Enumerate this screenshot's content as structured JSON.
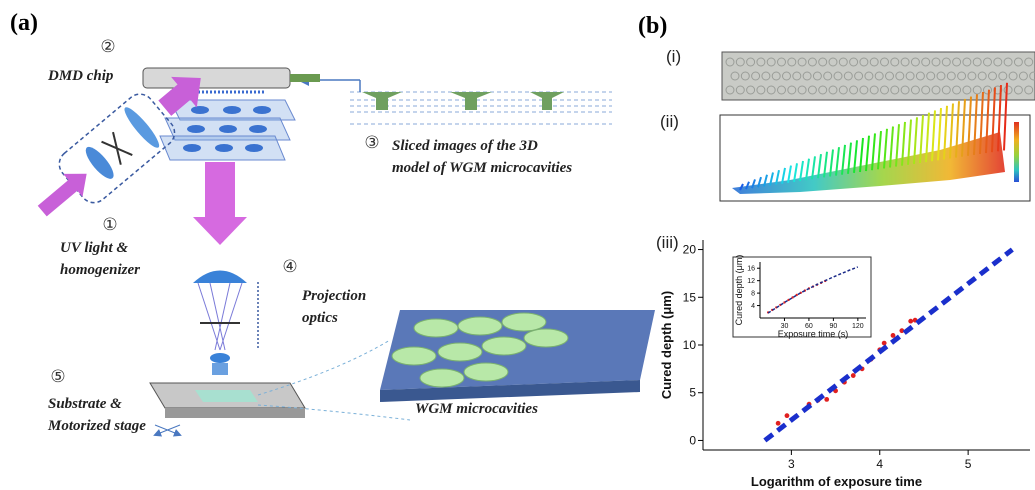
{
  "panel_a": {
    "label": "(a)",
    "steps": [
      {
        "number": "①",
        "lines": [
          "UV light &",
          "homogenizer"
        ]
      },
      {
        "number": "②",
        "lines": [
          "DMD chip"
        ]
      },
      {
        "number": "③",
        "lines": [
          "Sliced images of the 3D",
          "model of WGM microcavities"
        ]
      },
      {
        "number": "④",
        "lines": [
          "Projection",
          "optics"
        ]
      },
      {
        "number": "⑤",
        "lines": [
          "Substrate &",
          "Motorized stage"
        ]
      }
    ],
    "sample_label": "WGM microcavities"
  },
  "panel_b": {
    "label": "(b)",
    "sub_labels": [
      "(i)",
      "(ii)",
      "(iii)"
    ]
  },
  "chart_data": [
    {
      "type": "scatter",
      "xlabel": "Logarithm of exposure time",
      "ylabel": "Cured depth (μm)",
      "xlim": [
        2.0,
        5.7
      ],
      "ylim": [
        -1,
        21
      ],
      "xticks": [
        3,
        4,
        5
      ],
      "yticks": [
        0,
        5,
        10,
        15,
        20
      ],
      "series": [
        {
          "mode": "markers",
          "color": "#e02020",
          "x": [
            2.85,
            2.95,
            3.05,
            3.2,
            3.3,
            3.4,
            3.5,
            3.6,
            3.7,
            3.8,
            3.9,
            4.0,
            4.05,
            4.15,
            4.25,
            4.35,
            4.4
          ],
          "values": [
            1.8,
            2.6,
            2.5,
            3.8,
            4.2,
            4.3,
            5.2,
            6.1,
            6.8,
            7.5,
            8.5,
            9.5,
            10.2,
            11,
            11.5,
            12.5,
            12.6
          ]
        },
        {
          "mode": "dashed-line",
          "color": "#1a2fcc",
          "x": [
            2.7,
            5.5
          ],
          "values": [
            0,
            20
          ]
        }
      ]
    },
    {
      "type": "scatter",
      "xlabel": "Exposure time (s)",
      "ylabel": "Cured depth (μm)",
      "xlim": [
        0,
        130
      ],
      "ylim": [
        0,
        18
      ],
      "xticks": [
        30,
        60,
        90,
        120
      ],
      "yticks": [
        4,
        8,
        12,
        16
      ],
      "series": [
        {
          "mode": "markers",
          "color": "#e02020",
          "x": [
            10,
            15,
            20,
            25,
            30,
            35,
            40,
            45,
            50,
            55,
            60,
            65,
            70,
            75,
            80
          ],
          "values": [
            1.8,
            2.6,
            3.4,
            4.2,
            5.0,
            5.8,
            6.6,
            7.4,
            8.1,
            8.8,
            9.5,
            10.1,
            10.7,
            11.3,
            11.9
          ]
        },
        {
          "mode": "dashed-line",
          "color": "#1a2a88",
          "x": [
            10,
            30,
            50,
            70,
            90,
            110,
            120
          ],
          "values": [
            1.6,
            5.0,
            8.1,
            10.8,
            13.2,
            15.4,
            16.4
          ]
        }
      ]
    }
  ]
}
